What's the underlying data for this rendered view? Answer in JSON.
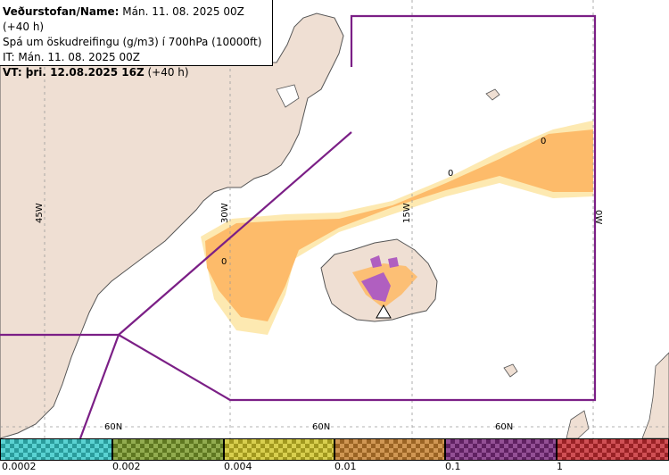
{
  "header": {
    "line1_label": "Veðurstofan/Name:",
    "line1_value": " Mán. 11. 08. 2025 00Z (+40 h)",
    "line2": "Spá um öskudreifingu (g/m3) í 700hPa (10000ft)",
    "line3": "IT: Mán. 11. 08. 2025 00Z",
    "line4_label": "VT: þri. 12.08.2025 16Z",
    "line4_value": " (+40 h)"
  },
  "map": {
    "longitude_labels": [
      "45W",
      "30W",
      "15W",
      "0W"
    ],
    "latitude_labels": [
      "60N",
      "60N",
      "60N"
    ],
    "contour_labels": [
      "0",
      "0",
      "0"
    ],
    "colors": {
      "sea": "#ffffff",
      "land": "#efdfd3",
      "coast": "#555555",
      "boundary": "#7b1f86",
      "ash_low": "#fdbb6a",
      "ash_faint": "#fde7a9",
      "ash_high": "#b05fc0",
      "grid": "#9a9a9a"
    }
  },
  "legend": {
    "ticks": [
      "0.0002",
      "0.002",
      "0.004",
      "0.01",
      "0.1",
      "1"
    ],
    "colors": [
      "#36c8c8",
      "#7a9a2a",
      "#cfc428",
      "#c6802e",
      "#7b2a7e",
      "#c42a30"
    ]
  }
}
